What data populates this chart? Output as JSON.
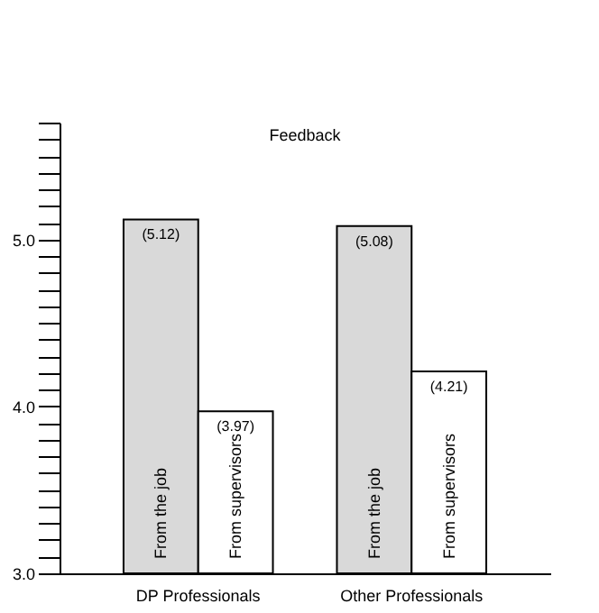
{
  "chart_data": {
    "type": "bar",
    "title": "Feedback",
    "categories": [
      "DP Professionals",
      "Other Professionals"
    ],
    "series": [
      {
        "name": "From the job",
        "color": "#d9d9d9",
        "values": [
          5.12,
          5.08
        ],
        "value_labels": [
          "(5.12)",
          "(5.08)"
        ]
      },
      {
        "name": "From supervisors",
        "color": "#ffffff",
        "values": [
          3.97,
          4.21
        ],
        "value_labels": [
          "(3.97)",
          "(4.21)"
        ]
      }
    ],
    "ylim": [
      3.0,
      5.7
    ],
    "yticks": [
      {
        "value": 3.0,
        "label": "3.0"
      },
      {
        "value": 3.1,
        "label": null
      },
      {
        "value": 3.2,
        "label": null
      },
      {
        "value": 3.3,
        "label": null
      },
      {
        "value": 3.4,
        "label": null
      },
      {
        "value": 3.5,
        "label": null
      },
      {
        "value": 3.6,
        "label": null
      },
      {
        "value": 3.7,
        "label": null
      },
      {
        "value": 3.8,
        "label": null
      },
      {
        "value": 3.9,
        "label": null
      },
      {
        "value": 4.0,
        "label": "4.0"
      },
      {
        "value": 4.1,
        "label": null
      },
      {
        "value": 4.2,
        "label": null
      },
      {
        "value": 4.3,
        "label": null
      },
      {
        "value": 4.4,
        "label": null
      },
      {
        "value": 4.5,
        "label": null
      },
      {
        "value": 4.6,
        "label": null
      },
      {
        "value": 4.7,
        "label": null
      },
      {
        "value": 4.8,
        "label": null
      },
      {
        "value": 4.9,
        "label": null
      },
      {
        "value": 5.0,
        "label": "5.0"
      },
      {
        "value": 5.1,
        "label": null
      },
      {
        "value": 5.2,
        "label": null
      },
      {
        "value": 5.3,
        "label": null
      },
      {
        "value": 5.4,
        "label": null
      },
      {
        "value": 5.5,
        "label": null
      },
      {
        "value": 5.6,
        "label": null
      },
      {
        "value": 5.7,
        "label": null
      }
    ],
    "grid": false
  }
}
